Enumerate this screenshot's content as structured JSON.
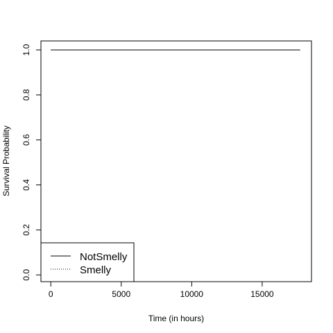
{
  "chart_data": {
    "type": "line",
    "xlabel": "Time (in hours)",
    "ylabel": "Survival Probability",
    "xlim": [
      -700,
      18500
    ],
    "ylim": [
      -0.03,
      1.04
    ],
    "x_ticks": [
      0,
      5000,
      10000,
      15000
    ],
    "x_tick_labels": [
      "0",
      "5000",
      "10000",
      "15000"
    ],
    "y_ticks": [
      0.0,
      0.2,
      0.4,
      0.6,
      0.8,
      1.0
    ],
    "y_tick_labels": [
      "0.0",
      "0.2",
      "0.4",
      "0.6",
      "0.8",
      "1.0"
    ],
    "grid": false,
    "legend": {
      "position": "bottom-left",
      "entries": [
        {
          "label": "NotSmelly",
          "line_style": "solid"
        },
        {
          "label": "Smelly",
          "line_style": "dotted"
        }
      ]
    },
    "series": [
      {
        "name": "NotSmelly",
        "line_style": "solid",
        "color": "#000000",
        "points": [
          {
            "x": 0,
            "y": 1.0
          },
          {
            "x": 17700,
            "y": 1.0
          }
        ]
      },
      {
        "name": "Smelly",
        "line_style": "dotted",
        "color": "#000000",
        "points": [
          {
            "x": 0,
            "y": 1.0
          },
          {
            "x": 15000,
            "y": 1.0
          }
        ]
      }
    ]
  }
}
